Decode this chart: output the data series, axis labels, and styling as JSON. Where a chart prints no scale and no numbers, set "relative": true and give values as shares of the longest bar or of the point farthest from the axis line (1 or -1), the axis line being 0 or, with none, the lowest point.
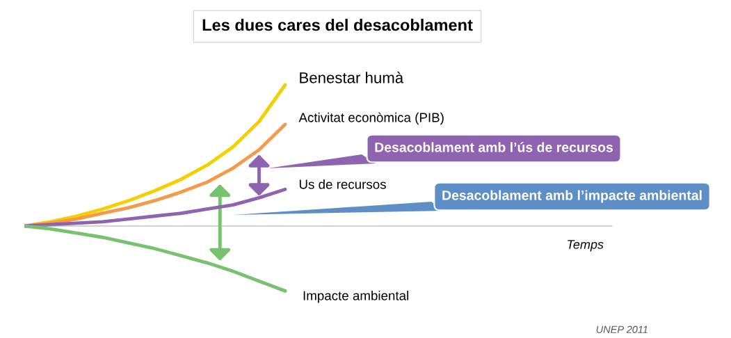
{
  "chart_data": {
    "type": "line",
    "title": "Les dues cares del desacoblament",
    "xlabel": "Temps",
    "relative": true,
    "legend": false,
    "marker": "none",
    "line_style": "solid",
    "categories": [
      null,
      null,
      null,
      null,
      null,
      null,
      null,
      null,
      null,
      null,
      null,
      null,
      null,
      null,
      null,
      null,
      null,
      null,
      null,
      null,
      null,
      null,
      null
    ],
    "series": [
      {
        "name": "Benestar humà",
        "color": "#f5d000",
        "values": [
          0,
          0.03,
          0.07,
          0.12,
          0.18,
          0.25,
          0.33,
          0.43,
          0.56,
          0.74,
          1.0,
          null,
          null,
          null,
          null,
          null,
          null,
          null,
          null,
          null,
          null,
          null,
          null
        ]
      },
      {
        "name": "Activitat econòmica (PIB)",
        "color": "#f59a4a",
        "values": [
          0,
          0.02,
          0.05,
          0.09,
          0.13,
          0.18,
          0.24,
          0.31,
          0.41,
          0.54,
          0.72,
          null,
          null,
          null,
          null,
          null,
          null,
          null,
          null,
          null,
          null,
          null,
          null
        ]
      },
      {
        "name": "Us de recursos",
        "color": "#8e63b0",
        "values": [
          0,
          0.01,
          0.02,
          0.03,
          0.05,
          0.07,
          0.09,
          0.12,
          0.15,
          0.2,
          0.26,
          null,
          null,
          null,
          null,
          null,
          null,
          null,
          null,
          null,
          null,
          null,
          null
        ]
      },
      {
        "name": "Impacte ambiental",
        "color": "#77c26e",
        "values": [
          0,
          -0.02,
          -0.05,
          -0.08,
          -0.12,
          -0.16,
          -0.21,
          -0.26,
          -0.32,
          -0.39,
          -0.46,
          null,
          null,
          null,
          null,
          null,
          null,
          null,
          null,
          null,
          null,
          null,
          null
        ]
      }
    ],
    "annotations": [
      "Desacoblament amb l’ús de recursos",
      "Desacoblament amb l’impacte ambiental",
      "UNEP 2011"
    ]
  }
}
